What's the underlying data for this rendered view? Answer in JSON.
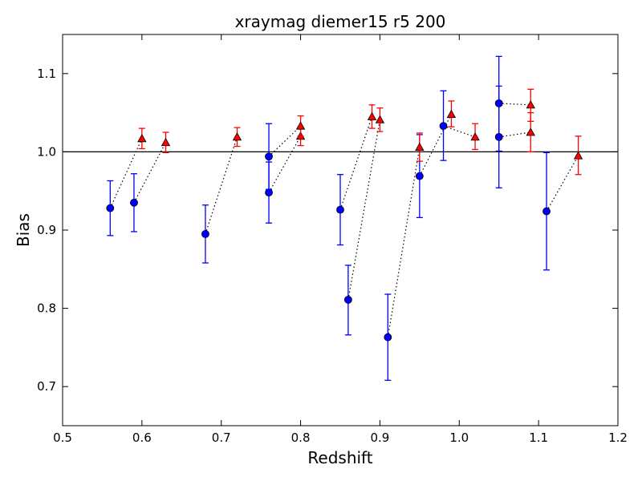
{
  "chart_data": {
    "type": "scatter",
    "title": "xraymag diemer15 r5 200",
    "xlabel": "Redshift",
    "ylabel": "Bias",
    "xlim": [
      0.5,
      1.2
    ],
    "ylim": [
      0.65,
      1.15
    ],
    "xticks": [
      "0.5",
      "0.6",
      "0.7",
      "0.8",
      "0.9",
      "1.0",
      "1.1",
      "1.2"
    ],
    "yticks": [
      "0.7",
      "0.8",
      "0.9",
      "1.0",
      "1.1"
    ],
    "grid": false,
    "reference_line_y": 1.0,
    "series": [
      {
        "marker": "circle",
        "color": "#0000ff",
        "points": [
          {
            "x": 0.56,
            "y": 0.928,
            "lo": 0.893,
            "hi": 0.963
          },
          {
            "x": 0.59,
            "y": 0.935,
            "lo": 0.898,
            "hi": 0.972
          },
          {
            "x": 0.68,
            "y": 0.895,
            "lo": 0.858,
            "hi": 0.932
          },
          {
            "x": 0.76,
            "y": 0.948,
            "lo": 0.909,
            "hi": 0.987
          },
          {
            "x": 0.76,
            "y": 0.994,
            "lo": 0.952,
            "hi": 1.036
          },
          {
            "x": 0.85,
            "y": 0.926,
            "lo": 0.881,
            "hi": 0.971
          },
          {
            "x": 0.86,
            "y": 0.811,
            "lo": 0.766,
            "hi": 0.855
          },
          {
            "x": 0.91,
            "y": 0.763,
            "lo": 0.708,
            "hi": 0.818
          },
          {
            "x": 0.95,
            "y": 0.969,
            "lo": 0.916,
            "hi": 1.022
          },
          {
            "x": 0.98,
            "y": 1.033,
            "lo": 0.989,
            "hi": 1.078
          },
          {
            "x": 1.05,
            "y": 1.062,
            "lo": 1.001,
            "hi": 1.122
          },
          {
            "x": 1.05,
            "y": 1.019,
            "lo": 0.954,
            "hi": 1.084
          },
          {
            "x": 1.11,
            "y": 0.924,
            "lo": 0.849,
            "hi": 0.999
          }
        ]
      },
      {
        "marker": "triangle",
        "color": "#ff0000",
        "points": [
          {
            "x": 0.6,
            "y": 1.017,
            "lo": 1.004,
            "hi": 1.03
          },
          {
            "x": 0.63,
            "y": 1.012,
            "lo": 0.999,
            "hi": 1.025
          },
          {
            "x": 0.72,
            "y": 1.019,
            "lo": 1.007,
            "hi": 1.031
          },
          {
            "x": 0.8,
            "y": 1.02,
            "lo": 1.008,
            "hi": 1.032
          },
          {
            "x": 0.8,
            "y": 1.033,
            "lo": 1.02,
            "hi": 1.046
          },
          {
            "x": 0.89,
            "y": 1.045,
            "lo": 1.03,
            "hi": 1.06
          },
          {
            "x": 0.9,
            "y": 1.041,
            "lo": 1.026,
            "hi": 1.056
          },
          {
            "x": 0.95,
            "y": 1.006,
            "lo": 0.988,
            "hi": 1.024
          },
          {
            "x": 0.99,
            "y": 1.048,
            "lo": 1.032,
            "hi": 1.065
          },
          {
            "x": 1.02,
            "y": 1.019,
            "lo": 1.003,
            "hi": 1.036
          },
          {
            "x": 1.09,
            "y": 1.06,
            "lo": 1.039,
            "hi": 1.08
          },
          {
            "x": 1.09,
            "y": 1.025,
            "lo": 1.0,
            "hi": 1.05
          },
          {
            "x": 1.15,
            "y": 0.995,
            "lo": 0.971,
            "hi": 1.02
          }
        ]
      }
    ],
    "connectors": [
      {
        "x1": 0.56,
        "y1": 0.928,
        "x2": 0.6,
        "y2": 1.017
      },
      {
        "x1": 0.59,
        "y1": 0.935,
        "x2": 0.63,
        "y2": 1.012
      },
      {
        "x1": 0.68,
        "y1": 0.895,
        "x2": 0.72,
        "y2": 1.019
      },
      {
        "x1": 0.76,
        "y1": 0.948,
        "x2": 0.8,
        "y2": 1.02
      },
      {
        "x1": 0.76,
        "y1": 0.994,
        "x2": 0.8,
        "y2": 1.033
      },
      {
        "x1": 0.85,
        "y1": 0.926,
        "x2": 0.89,
        "y2": 1.045
      },
      {
        "x1": 0.86,
        "y1": 0.811,
        "x2": 0.9,
        "y2": 1.041
      },
      {
        "x1": 0.91,
        "y1": 0.763,
        "x2": 0.95,
        "y2": 1.006
      },
      {
        "x1": 0.95,
        "y1": 0.969,
        "x2": 0.99,
        "y2": 1.048
      },
      {
        "x1": 0.98,
        "y1": 1.033,
        "x2": 1.02,
        "y2": 1.019
      },
      {
        "x1": 1.05,
        "y1": 1.062,
        "x2": 1.09,
        "y2": 1.06
      },
      {
        "x1": 1.05,
        "y1": 1.019,
        "x2": 1.09,
        "y2": 1.025
      },
      {
        "x1": 1.11,
        "y1": 0.924,
        "x2": 1.15,
        "y2": 0.995
      }
    ]
  }
}
